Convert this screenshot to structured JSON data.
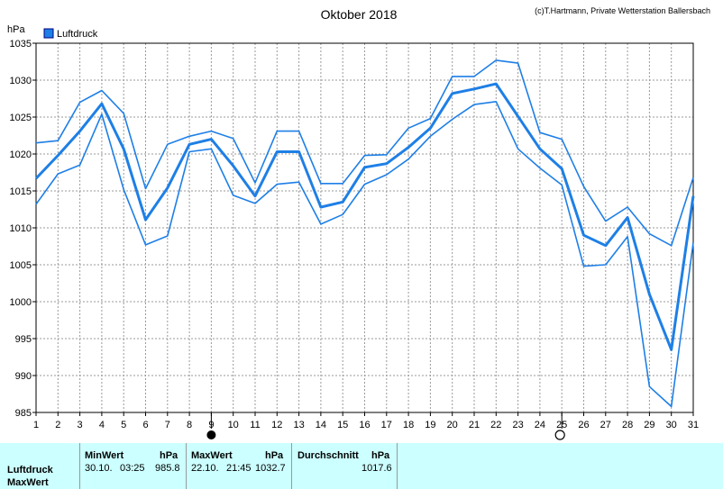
{
  "title": "Oktober 2018",
  "credit": "(c)T.Hartmann, Private Wetterstation Ballersbach",
  "unit_label": "hPa",
  "colors": {
    "series": "#1e7fe6",
    "grid": "#9a9a9a",
    "stats_bg": "#ccffff"
  },
  "moon_markers": [
    {
      "day": 9,
      "icon": "new-moon-icon"
    },
    {
      "day": 25,
      "icon": "full-moon-icon"
    }
  ],
  "chart_data": {
    "type": "line",
    "title": "Oktober 2018",
    "ylabel": "hPa",
    "xlabel": "",
    "ylim": [
      985,
      1035
    ],
    "xlim": [
      1,
      31
    ],
    "grid": true,
    "legend_position": "top-left",
    "y_ticks": [
      "985",
      "990",
      "995",
      "1000",
      "1005",
      "1010",
      "1015",
      "1020",
      "1025",
      "1030",
      "1035"
    ],
    "x_ticks": [
      "1",
      "2",
      "3",
      "4",
      "5",
      "6",
      "7",
      "8",
      "9",
      "10",
      "11",
      "12",
      "13",
      "14",
      "15",
      "16",
      "17",
      "18",
      "19",
      "20",
      "21",
      "22",
      "23",
      "24",
      "25",
      "26",
      "27",
      "28",
      "29",
      "30",
      "31"
    ],
    "x": [
      1,
      2,
      3,
      4,
      5,
      6,
      7,
      8,
      9,
      10,
      11,
      12,
      13,
      14,
      15,
      16,
      17,
      18,
      19,
      20,
      21,
      22,
      23,
      24,
      25,
      26,
      27,
      28,
      29,
      30,
      31
    ],
    "legend": [
      {
        "name": "Luftdruck",
        "color": "#1e7fe6"
      }
    ],
    "series": [
      {
        "name": "Luftdruck",
        "role": "max",
        "values": [
          1021.5,
          1021.8,
          1027.0,
          1028.6,
          1025.5,
          1015.3,
          1021.3,
          1022.4,
          1023.1,
          1022.1,
          1016.1,
          1023.1,
          1023.1,
          1016.0,
          1016.0,
          1019.8,
          1019.9,
          1023.5,
          1024.8,
          1030.5,
          1030.5,
          1032.7,
          1032.3,
          1022.9,
          1022.0,
          1015.6,
          1010.9,
          1012.8,
          1009.2,
          1007.6,
          1016.8
        ]
      },
      {
        "name": "Luftdruck",
        "role": "mean",
        "values": [
          1016.7,
          1019.8,
          1023.1,
          1026.8,
          1020.7,
          1011.1,
          1015.4,
          1021.3,
          1022.0,
          1018.4,
          1014.3,
          1020.3,
          1020.3,
          1012.8,
          1013.5,
          1018.2,
          1018.7,
          1020.9,
          1023.5,
          1028.2,
          1028.8,
          1029.5,
          1025.1,
          1020.7,
          1018.0,
          1009.0,
          1007.6,
          1011.4,
          1001.0,
          993.5,
          1014.3
        ]
      },
      {
        "name": "Luftdruck",
        "role": "min",
        "values": [
          1013.2,
          1017.3,
          1018.5,
          1025.4,
          1015.2,
          1007.7,
          1008.9,
          1020.3,
          1020.7,
          1014.4,
          1013.3,
          1015.9,
          1016.2,
          1010.5,
          1011.8,
          1015.9,
          1017.2,
          1019.3,
          1022.4,
          1024.7,
          1026.7,
          1027.1,
          1020.7,
          1018.1,
          1015.8,
          1004.8,
          1005.0,
          1008.8,
          988.5,
          985.8,
          1008.0
        ]
      }
    ]
  },
  "stats": {
    "row_label": "Luftdruck",
    "row2_label": "MaxWert",
    "min_header": "MinWert",
    "min_unit": "hPa",
    "min_date": "30.10.",
    "min_time": "03:25",
    "min_value": "985.8",
    "max_header": "MaxWert",
    "max_unit": "hPa",
    "max_date": "22.10.",
    "max_time": "21:45",
    "max_value": "1032.7",
    "avg_header": "Durchschnitt",
    "avg_unit": "hPa",
    "avg_value": "1017.6"
  }
}
